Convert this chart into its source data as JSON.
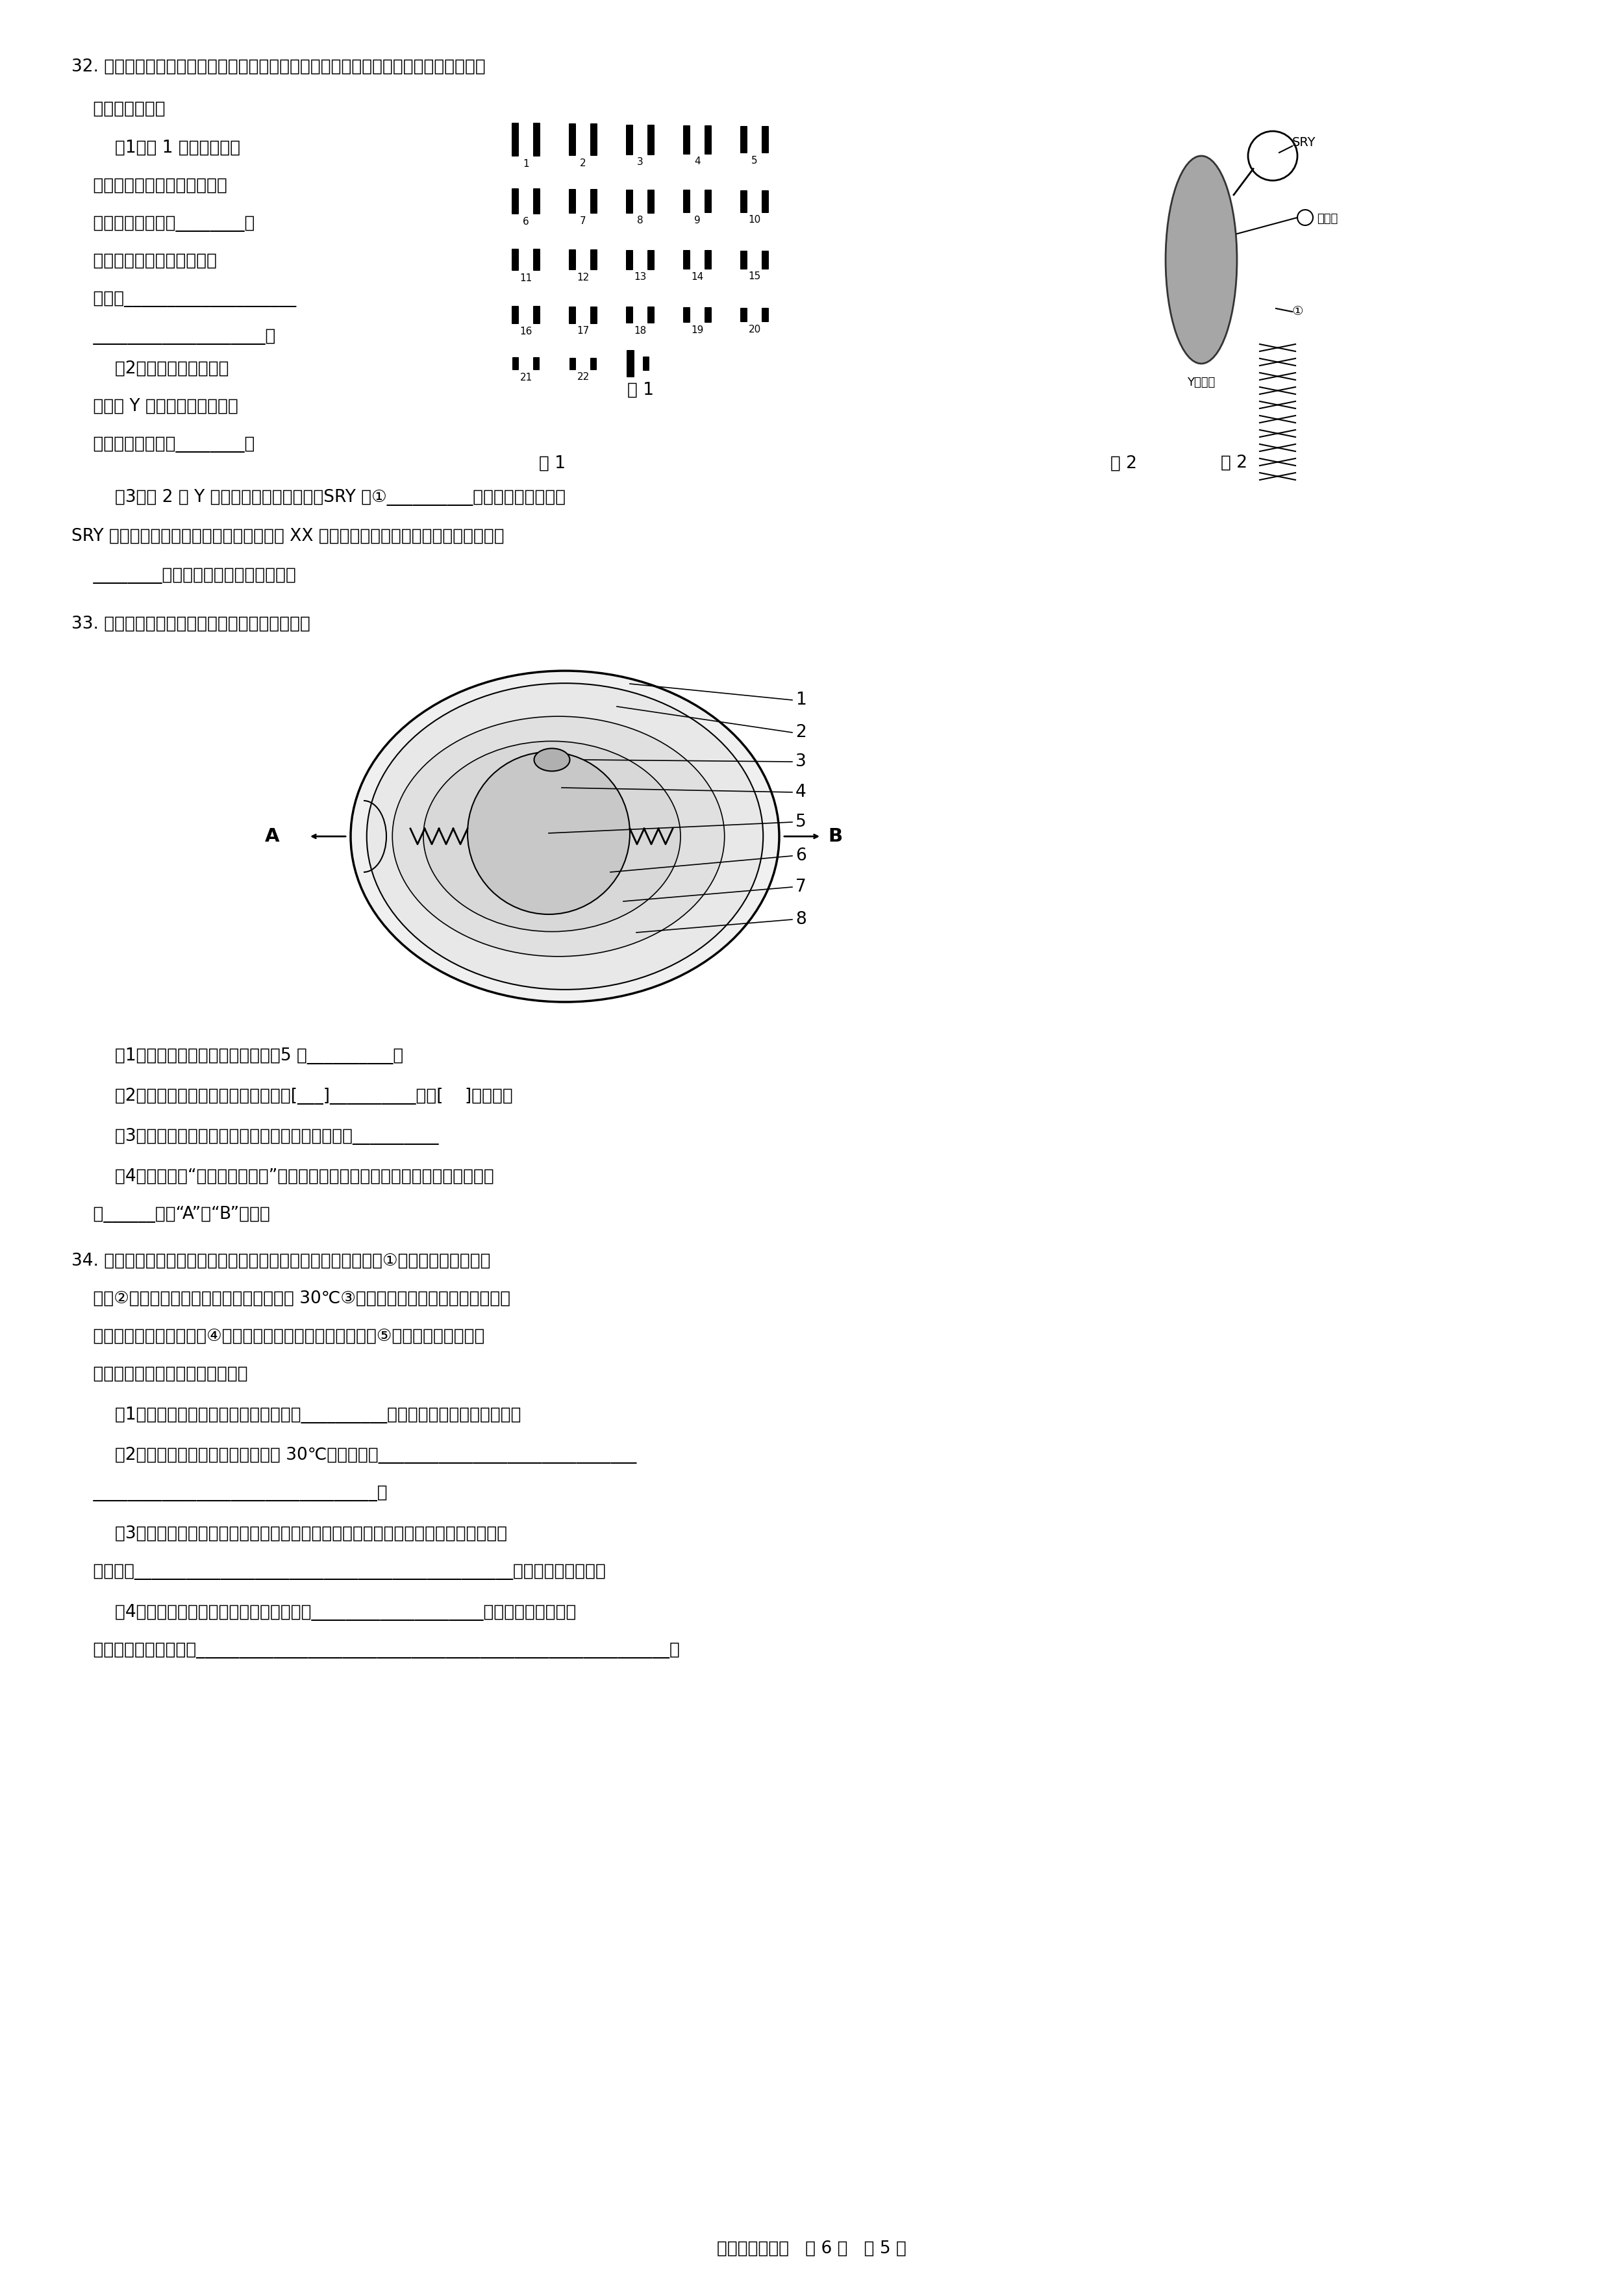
{
  "bg_color": "#ffffff",
  "text_color": "#000000",
  "page_footer": "八年级生物试卷   共 6 页   第 5 页",
  "q32_line1": "32. 随着研究的深入，关于人类的性别决定、第二性征的差异等问题，正逐步被揭示。请",
  "q32_line2": "    回答下列问题：",
  "q32_1a": "        （1）图 1 是一个正常人",
  "q32_1b": "    的体细胞染色体排序图，由图",
  "q32_1c": "    可知，此人性别为________，",
  "q32_1d": "    请写出其生殖细胞中染色体",
  "q32_1e": "    的组成____________________",
  "q32_1f": "    ____________________。",
  "q32_2a": "        （2）正常状况下，男性",
  "q32_2b": "    产生含 Y 染色体的精子在所有",
  "q32_2c": "    精子中所占比例为________。",
  "fig1_label": "图 1",
  "fig2_label": "图 2",
  "q32_3": "        （3）图 2 为 Y 染色体及其组成示意图，SRY 是①__________上的片段。科学家将",
  "q32_3b": "SRY 注射到小鼠受精卵细胞核中，发现含有 XX 染色体的小鼠却发育出了睾丸，由此证明",
  "q32_3c": "    ________是决定睾丸形成的重要基因。",
  "q33_line1": "33. 如图为鸟卵结构的示意图，请据图回答问题。",
  "q33_1": "        （1）请写出图中序号代表的结构：5 为__________。",
  "q33_2": "        （2）鸟卵结构中，胚胎发育的部位是[___]__________。（[    ]填序号）",
  "q33_3": "        （3）一个卵细胞由图中哪些结构构成？（填序号）__________",
  "q33_4a": "        （4）我们在做“观察鸟卵的结构”这个实验时，首先用镪子轻轻敲打出裂纹的部位",
  "q33_4b": "    是______（填“A”或“B”）端。",
  "q34_line1": "34. 春节快到了，大家都想准备做米酒。现将制作米酒工序介绍：①将酒曲粉末与糯米饭",
  "q34_line2": "    拌匀②用凉开水将糯米饭冲淋一次，冷却到 30℃③将糯米饭放入容器中盖好，用毛巾",
  "q34_line3": "    包裹起来置入温暖的地方④将糯米用水淤洗干净后浸泡一昼夜⑤将糯米倒入蘸锅煮熟",
  "q34_line4": "    （以上容器、毛巾等均已被灭菌）",
  "q34_1": "        （1）请写出制作米酒工序的正确步骤：__________（用工序号中的序号作答）。",
  "q34_2a": "        （2）用凉开水将糯米饭冲淋冷却到 30℃的目的是：______________________________",
  "q34_2b": "    _________________________________。",
  "q34_3a": "        （3）有一位同学按以上工序制作米酒，几天后发现米酒没做好，竟然发霧了。可能的",
  "q34_3b": "    原因是：____________________________________________（写出一条即可）。",
  "q34_4a": "        （4）制作米酒的过程中用到的菌种主要是____________________，与病毒相比，在结",
  "q34_4b": "    构方面最明显的特征是_______________________________________________________。"
}
